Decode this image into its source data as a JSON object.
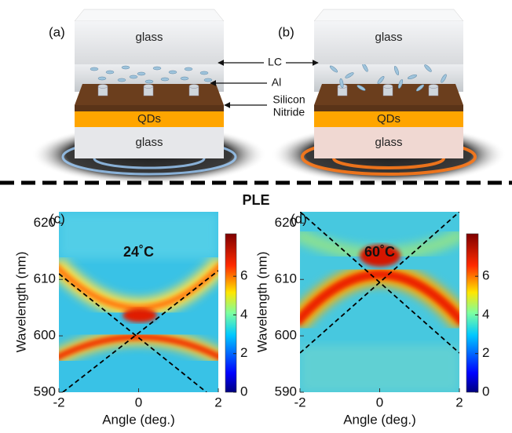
{
  "schematics": [
    {
      "label": "(a)",
      "top_glass": "glass",
      "qds": "QDs",
      "bottom_glass": "glass"
    },
    {
      "label": "(b)",
      "top_glass": "glass",
      "qds": "QDs",
      "bottom_glass": "glass"
    }
  ],
  "annotations": {
    "lc": "LC",
    "al": "Al",
    "silicon_nitride": [
      "Silicon",
      "Nitride"
    ]
  },
  "section_title": "PLE",
  "chart_data": [
    {
      "type": "heatmap",
      "label": "(c)",
      "annotation": "24˚C",
      "xlabel": "Angle (deg.)",
      "ylabel": "Wavelength (nm)",
      "xlim": [
        -2,
        2
      ],
      "xticks": [
        -2,
        0,
        2
      ],
      "ylim": [
        590,
        622
      ],
      "yticks": [
        590,
        600,
        610,
        620
      ],
      "colorbar": {
        "lim": [
          0,
          8.2
        ],
        "ticks": [
          0,
          2,
          4,
          6
        ]
      }
    },
    {
      "type": "heatmap",
      "label": "(d)",
      "annotation": "60˚C",
      "xlabel": "Angle (deg.)",
      "ylabel": "Wavelength (nm)",
      "xlim": [
        -2,
        2
      ],
      "xticks": [
        -2,
        0,
        2
      ],
      "ylim": [
        590,
        622
      ],
      "yticks": [
        590,
        600,
        610,
        620
      ],
      "colorbar": {
        "lim": [
          0,
          8.2
        ],
        "ticks": [
          0,
          2,
          4,
          6
        ]
      }
    }
  ]
}
